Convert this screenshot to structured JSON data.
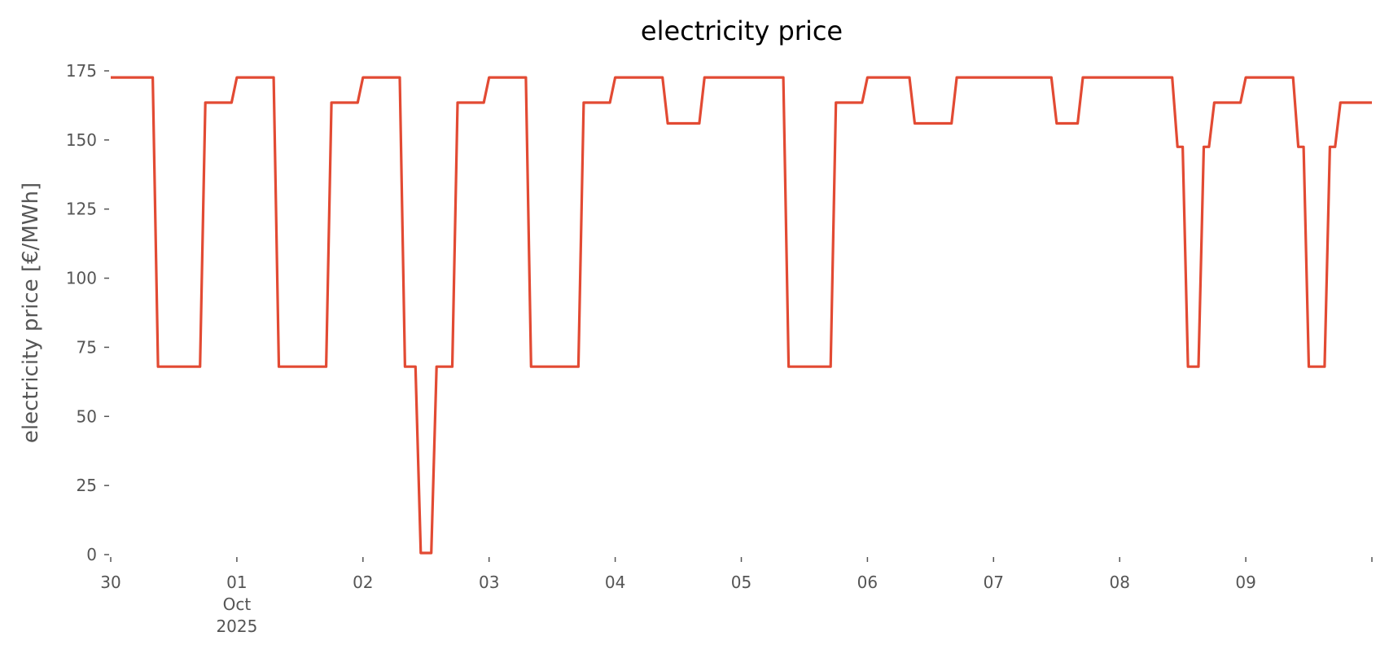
{
  "chart_data": {
    "type": "line",
    "title": "electricity price",
    "xlabel": "",
    "ylabel": "electricity price [€/MWh]",
    "ylim": [
      0,
      175
    ],
    "xlim": [
      "2025-09-30 00:00",
      "2025-10-10 00:00"
    ],
    "grid": false,
    "line_color": "#E24A33",
    "text_color": "#555555",
    "yticks": [
      0,
      25,
      50,
      75,
      100,
      125,
      150,
      175
    ],
    "xticks": [
      {
        "x": "2025-09-30 00:00",
        "label": [
          "30"
        ]
      },
      {
        "x": "2025-10-01 00:00",
        "label": [
          "01",
          "Oct",
          "2025"
        ]
      },
      {
        "x": "2025-10-02 00:00",
        "label": [
          "02"
        ]
      },
      {
        "x": "2025-10-03 00:00",
        "label": [
          "03"
        ]
      },
      {
        "x": "2025-10-04 00:00",
        "label": [
          "04"
        ]
      },
      {
        "x": "2025-10-05 00:00",
        "label": [
          "05"
        ]
      },
      {
        "x": "2025-10-06 00:00",
        "label": [
          "06"
        ]
      },
      {
        "x": "2025-10-07 00:00",
        "label": [
          "07"
        ]
      },
      {
        "x": "2025-10-08 00:00",
        "label": [
          "08"
        ]
      },
      {
        "x": "2025-10-09 00:00",
        "label": [
          "09"
        ]
      },
      {
        "x": "2025-10-10 00:00",
        "label": []
      }
    ],
    "series": [
      {
        "points": [
          [
            "2025-09-30 00:00",
            172.6
          ],
          [
            "2025-09-30 08:00",
            172.6
          ],
          [
            "2025-09-30 09:00",
            68
          ],
          [
            "2025-09-30 17:00",
            68
          ],
          [
            "2025-09-30 18:00",
            163.5
          ],
          [
            "2025-09-30 23:00",
            163.5
          ],
          [
            "2025-10-01 00:00",
            172.6
          ],
          [
            "2025-10-01 07:00",
            172.6
          ],
          [
            "2025-10-01 08:00",
            68
          ],
          [
            "2025-10-01 17:00",
            68
          ],
          [
            "2025-10-01 18:00",
            163.5
          ],
          [
            "2025-10-01 23:00",
            163.5
          ],
          [
            "2025-10-02 00:00",
            172.6
          ],
          [
            "2025-10-02 07:00",
            172.6
          ],
          [
            "2025-10-02 08:00",
            68
          ],
          [
            "2025-10-02 10:00",
            68
          ],
          [
            "2025-10-02 11:00",
            0.6
          ],
          [
            "2025-10-02 13:00",
            0.6
          ],
          [
            "2025-10-02 14:00",
            68
          ],
          [
            "2025-10-02 17:00",
            68
          ],
          [
            "2025-10-02 18:00",
            163.5
          ],
          [
            "2025-10-02 23:00",
            163.5
          ],
          [
            "2025-10-03 00:00",
            172.6
          ],
          [
            "2025-10-03 07:00",
            172.6
          ],
          [
            "2025-10-03 08:00",
            68
          ],
          [
            "2025-10-03 17:00",
            68
          ],
          [
            "2025-10-03 18:00",
            163.5
          ],
          [
            "2025-10-03 23:00",
            163.5
          ],
          [
            "2025-10-04 00:00",
            172.6
          ],
          [
            "2025-10-04 09:00",
            172.6
          ],
          [
            "2025-10-04 10:00",
            156
          ],
          [
            "2025-10-04 16:00",
            156
          ],
          [
            "2025-10-04 17:00",
            172.6
          ],
          [
            "2025-10-05 08:00",
            172.6
          ],
          [
            "2025-10-05 09:00",
            68
          ],
          [
            "2025-10-05 17:00",
            68
          ],
          [
            "2025-10-05 18:00",
            163.5
          ],
          [
            "2025-10-05 23:00",
            163.5
          ],
          [
            "2025-10-06 00:00",
            172.6
          ],
          [
            "2025-10-06 08:00",
            172.6
          ],
          [
            "2025-10-06 09:00",
            156
          ],
          [
            "2025-10-06 16:00",
            156
          ],
          [
            "2025-10-06 17:00",
            172.6
          ],
          [
            "2025-10-07 11:00",
            172.6
          ],
          [
            "2025-10-07 12:00",
            156
          ],
          [
            "2025-10-07 16:00",
            156
          ],
          [
            "2025-10-07 17:00",
            172.6
          ],
          [
            "2025-10-08 10:00",
            172.6
          ],
          [
            "2025-10-08 11:00",
            147.5
          ],
          [
            "2025-10-08 12:00",
            147.5
          ],
          [
            "2025-10-08 13:00",
            68
          ],
          [
            "2025-10-08 15:00",
            68
          ],
          [
            "2025-10-08 16:00",
            147.5
          ],
          [
            "2025-10-08 17:00",
            147.5
          ],
          [
            "2025-10-08 18:00",
            163.5
          ],
          [
            "2025-10-08 23:00",
            163.5
          ],
          [
            "2025-10-09 00:00",
            172.6
          ],
          [
            "2025-10-09 09:00",
            172.6
          ],
          [
            "2025-10-09 10:00",
            147.5
          ],
          [
            "2025-10-09 11:00",
            147.5
          ],
          [
            "2025-10-09 12:00",
            68
          ],
          [
            "2025-10-09 15:00",
            68
          ],
          [
            "2025-10-09 16:00",
            147.5
          ],
          [
            "2025-10-09 17:00",
            147.5
          ],
          [
            "2025-10-09 18:00",
            163.5
          ],
          [
            "2025-10-10 00:00",
            163.5
          ]
        ]
      }
    ]
  }
}
